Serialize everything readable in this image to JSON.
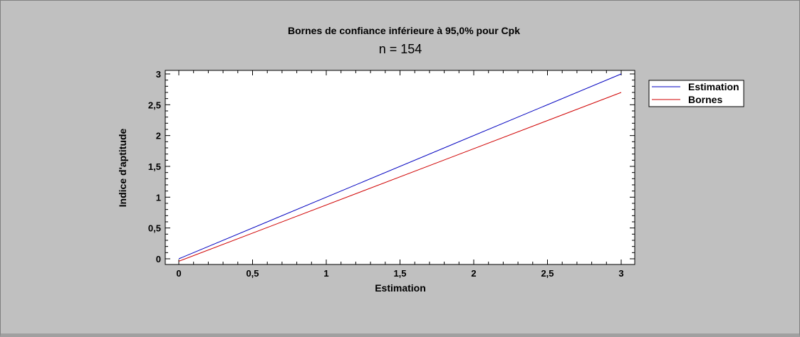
{
  "chart_data": {
    "type": "line",
    "title": "Bornes de confiance inférieure à 95,0% pour Cpk",
    "subtitle": "n = 154",
    "xlabel": "Estimation",
    "ylabel": "Indice d'aptitude",
    "xlim": [
      0,
      3
    ],
    "ylim": [
      0,
      3
    ],
    "x_ticks": [
      "0",
      "0,5",
      "1",
      "1,5",
      "2",
      "2,5",
      "3"
    ],
    "y_ticks": [
      "0",
      "0,5",
      "1",
      "1,5",
      "2",
      "2,5",
      "3"
    ],
    "grid": false,
    "legend_position": "top-right",
    "series": [
      {
        "name": "Estimation",
        "color": "#0000c0",
        "x": [
          0,
          3
        ],
        "y": [
          0,
          3
        ]
      },
      {
        "name": "Bornes",
        "color": "#d00000",
        "x": [
          0,
          3
        ],
        "y": [
          -0.04,
          2.7
        ]
      }
    ]
  }
}
